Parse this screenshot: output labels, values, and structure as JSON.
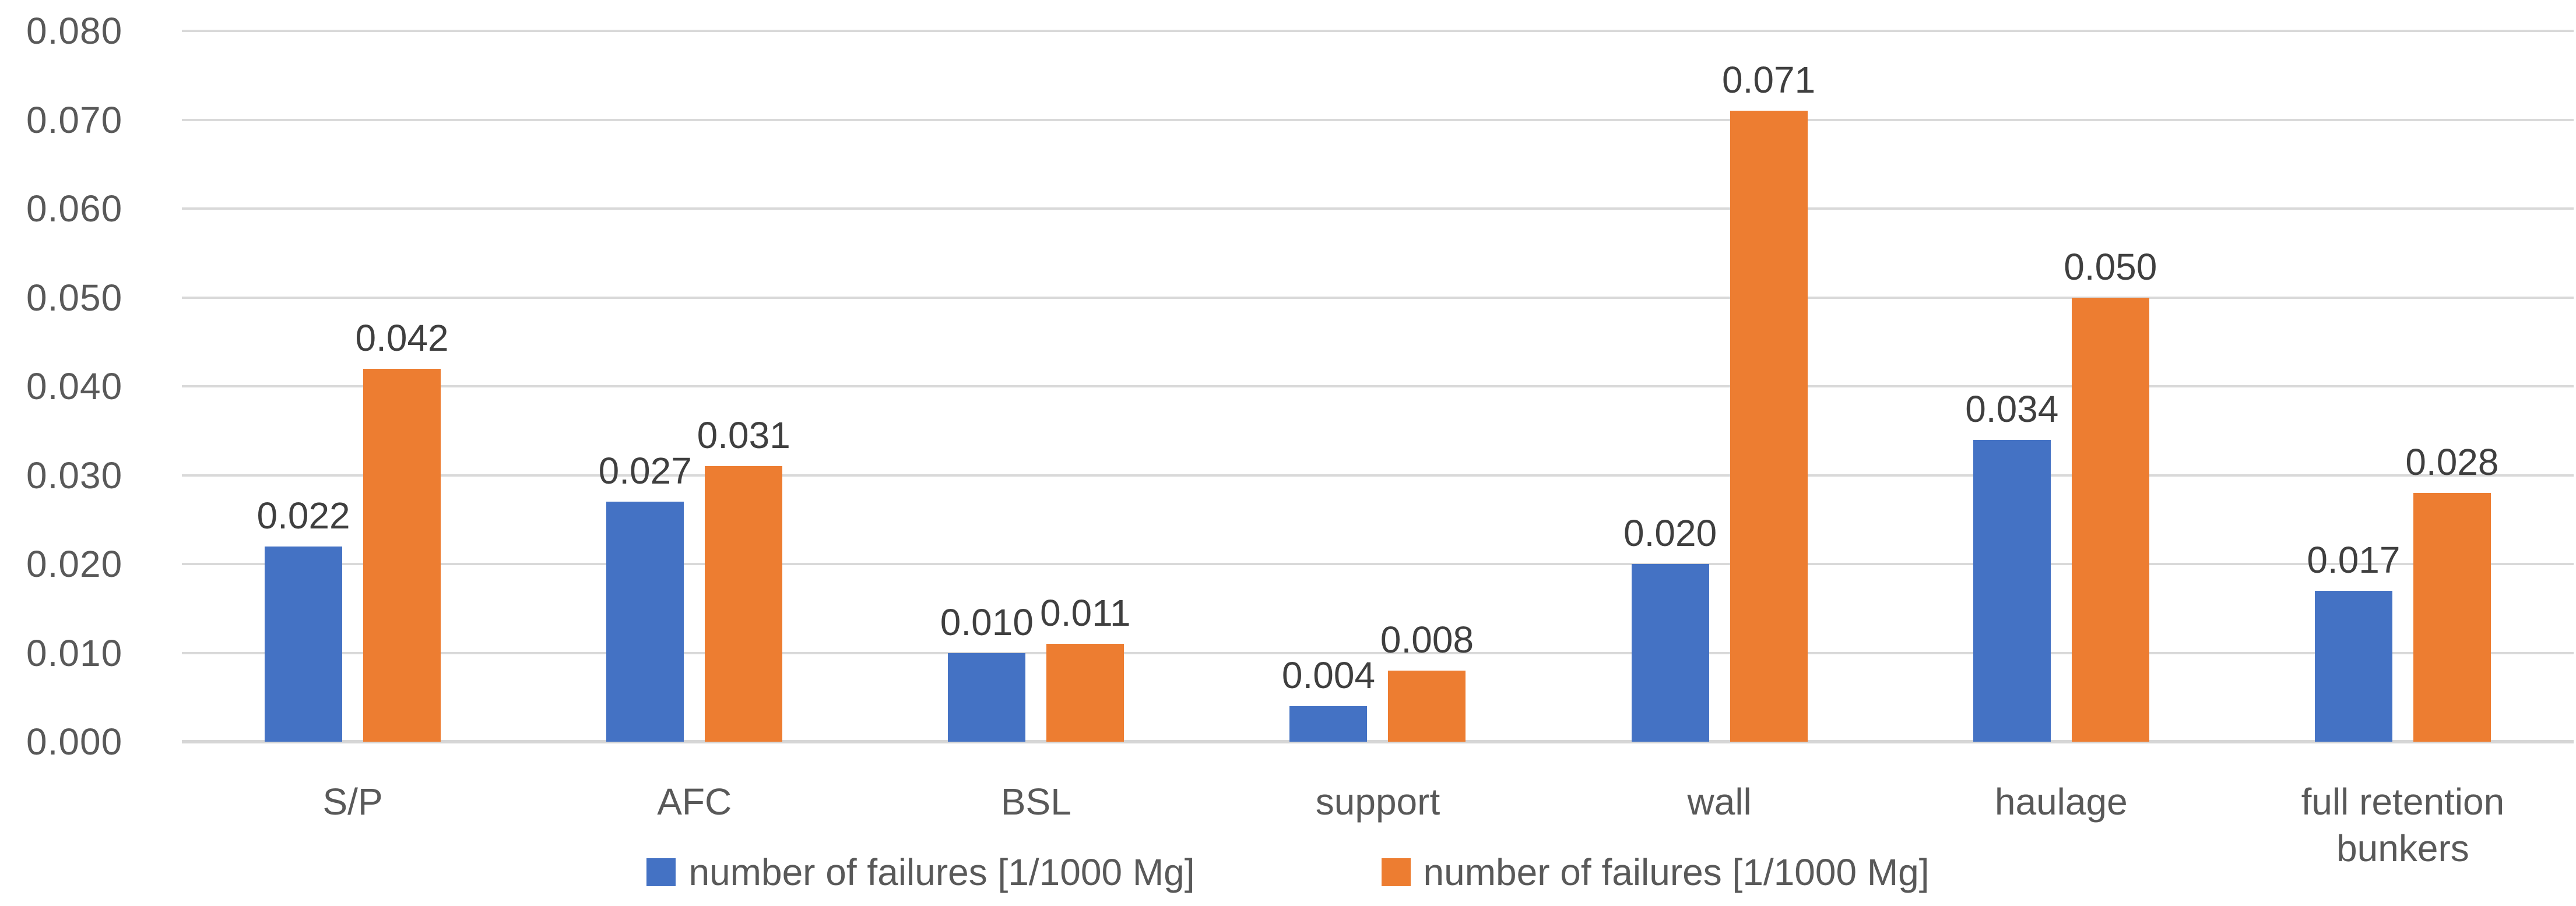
{
  "chart_data": {
    "type": "bar",
    "title": "",
    "categories": [
      "S/P",
      "AFC",
      "BSL",
      "support",
      "wall",
      "haulage",
      "full retention bunkers"
    ],
    "series": [
      {
        "name": "number of failures [1/1000 Mg]",
        "color": "#4472C4",
        "values": [
          0.022,
          0.027,
          0.01,
          0.004,
          0.02,
          0.034,
          0.017
        ],
        "labels": [
          "0.022",
          "0.027",
          "0.010",
          "0.004",
          "0.020",
          "0.034",
          "0.017"
        ]
      },
      {
        "name": "number of failures [1/1000 Mg]",
        "color": "#ED7D31",
        "values": [
          0.042,
          0.031,
          0.011,
          0.008,
          0.071,
          0.05,
          0.028
        ],
        "labels": [
          "0.042",
          "0.031",
          "0.011",
          "0.008",
          "0.071",
          "0.050",
          "0.028"
        ]
      }
    ],
    "ylim": [
      0,
      0.08
    ],
    "ytick_step": 0.01,
    "yticks": [
      "0.080",
      "0.070",
      "0.060",
      "0.050",
      "0.040",
      "0.030",
      "0.020",
      "0.010",
      "0.000"
    ],
    "grid": true,
    "legend_position": "bottom",
    "colors": {
      "gridline": "#D9D9D9",
      "axis_line": "#D6D6D6",
      "tick_label_text": "#595959",
      "data_label_text": "#3F3F3F",
      "legend_text": "#595959"
    }
  }
}
